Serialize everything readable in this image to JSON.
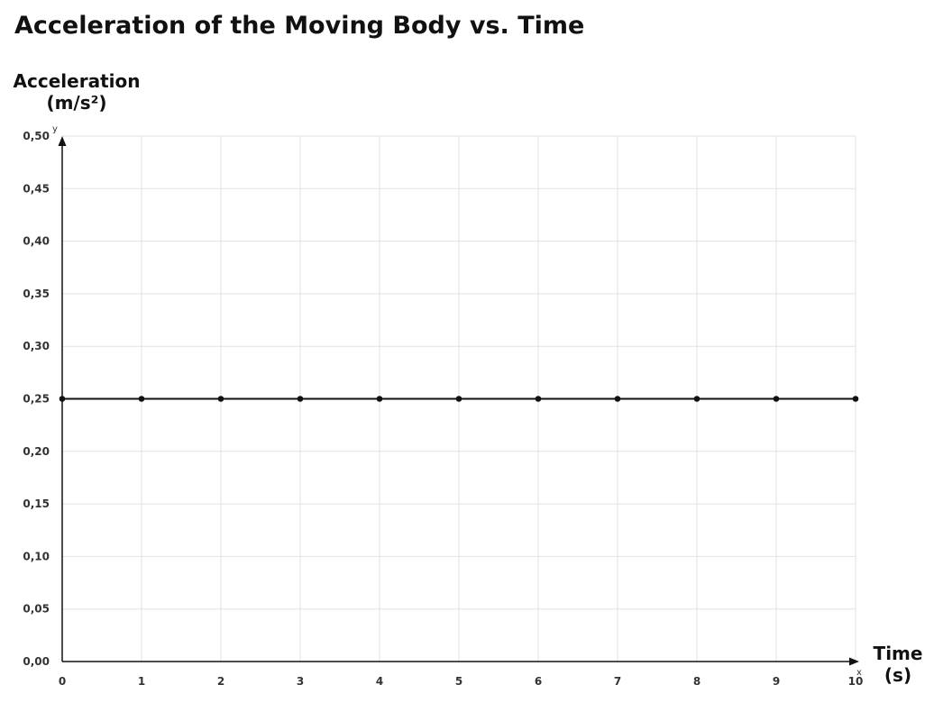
{
  "chart_data": {
    "type": "line",
    "title": "Acceleration of the Moving Body vs. Time",
    "ylabel_line1": "Acceleration",
    "ylabel_line2": "(m/s²)",
    "xlabel_line1": "Time",
    "xlabel_line2": "(s)",
    "x_axis_letter": "x",
    "y_axis_letter": "y",
    "xlim": [
      0,
      10
    ],
    "ylim": [
      0,
      0.5
    ],
    "x_ticks": [
      "0",
      "1",
      "2",
      "3",
      "4",
      "5",
      "6",
      "7",
      "8",
      "9",
      "10"
    ],
    "y_ticks": [
      "0,00",
      "0,05",
      "0,10",
      "0,15",
      "0,20",
      "0,25",
      "0,30",
      "0,35",
      "0,40",
      "0,45",
      "0,50"
    ],
    "grid": true,
    "series": [
      {
        "x": [
          0,
          1,
          2,
          3,
          4,
          5,
          6,
          7,
          8,
          9,
          10
        ],
        "y": [
          0.25,
          0.25,
          0.25,
          0.25,
          0.25,
          0.25,
          0.25,
          0.25,
          0.25,
          0.25,
          0.25
        ]
      }
    ],
    "colors": {
      "line": "#111111",
      "grid": "#e2e2e2",
      "axis": "#111111"
    }
  }
}
